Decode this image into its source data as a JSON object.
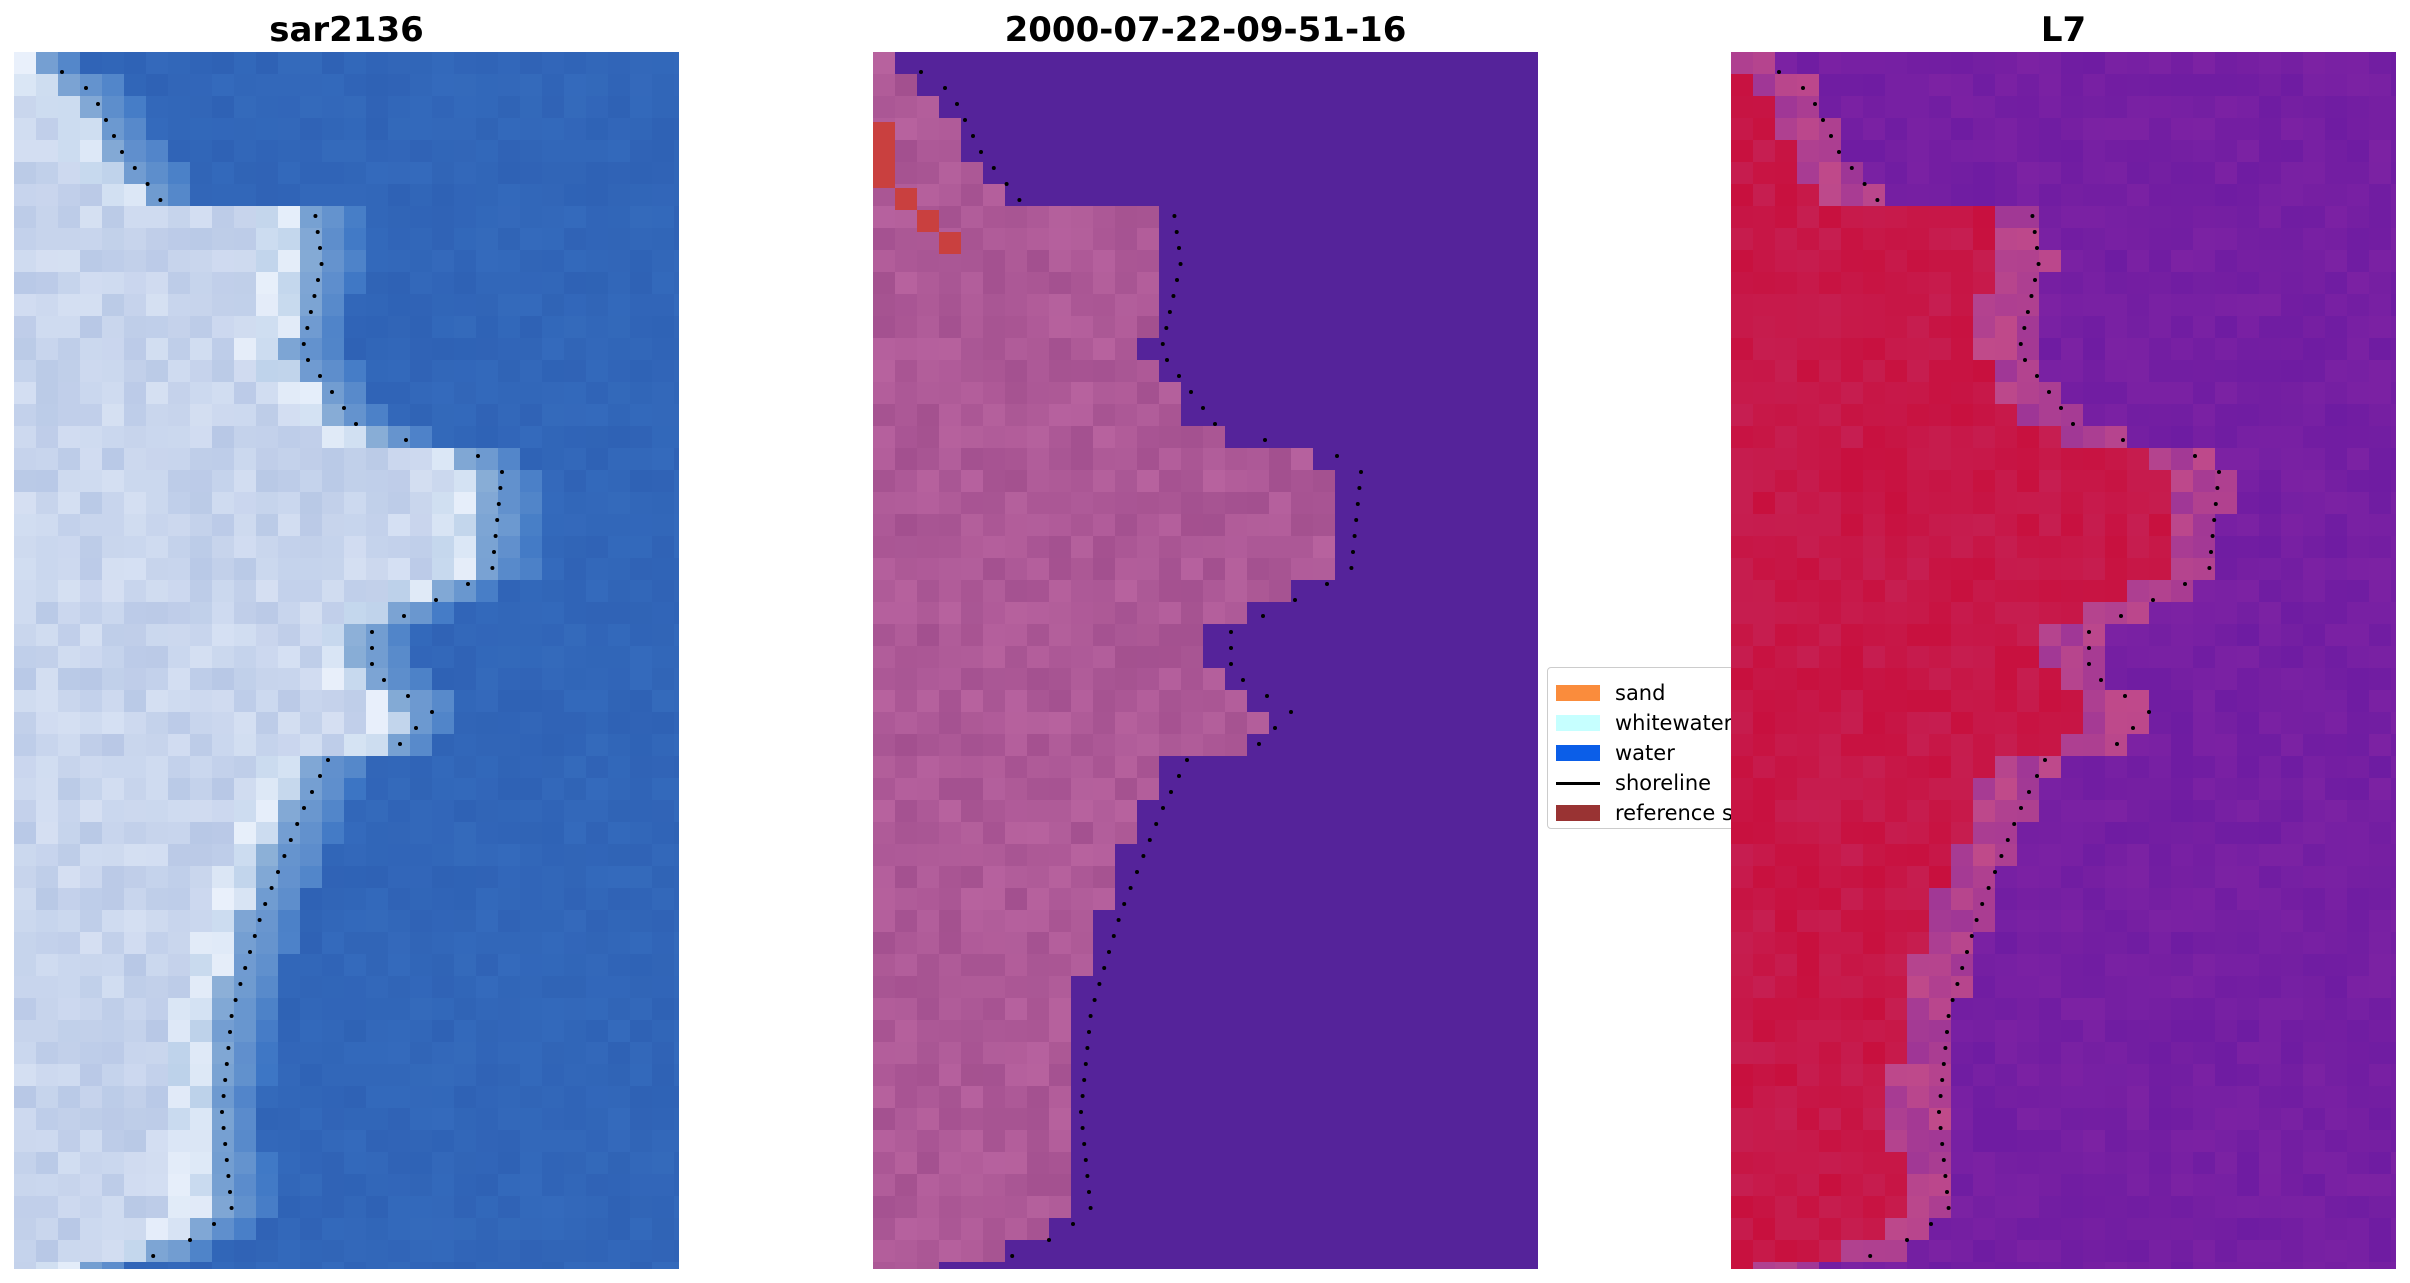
{
  "panels": [
    {
      "title": "sar2136",
      "image": "rgb-satellite-composite",
      "palette": {
        "water": "#2f62b5",
        "water_light": "#3a74c4",
        "land": "#b8c8e6",
        "land_bright": "#e9f0fb",
        "surf": "#8fb2d8"
      }
    },
    {
      "title": "2000-07-22-09-51-16",
      "image": "classified-overlay",
      "palette": {
        "water": "#55239a",
        "land": "#a3508f",
        "land_light": "#c06aa5",
        "reference": "#c9403f"
      }
    },
    {
      "title": "L7",
      "image": "false-color-index",
      "palette": {
        "water": "#7c22a3",
        "water_dark": "#5a13a0",
        "land": "#c8103e",
        "transition": "#c04a8a"
      }
    }
  ],
  "legend": {
    "items": [
      {
        "label": "sand",
        "color": "#fa8c3c",
        "kind": "patch"
      },
      {
        "label": "whitewater",
        "color": "#c6ffff",
        "kind": "patch"
      },
      {
        "label": "water",
        "color": "#0b5ee8",
        "kind": "patch"
      },
      {
        "label": "shoreline",
        "color": "#000000",
        "kind": "line"
      },
      {
        "label": "reference shoreline",
        "color": "#993333",
        "kind": "patch"
      }
    ]
  }
}
